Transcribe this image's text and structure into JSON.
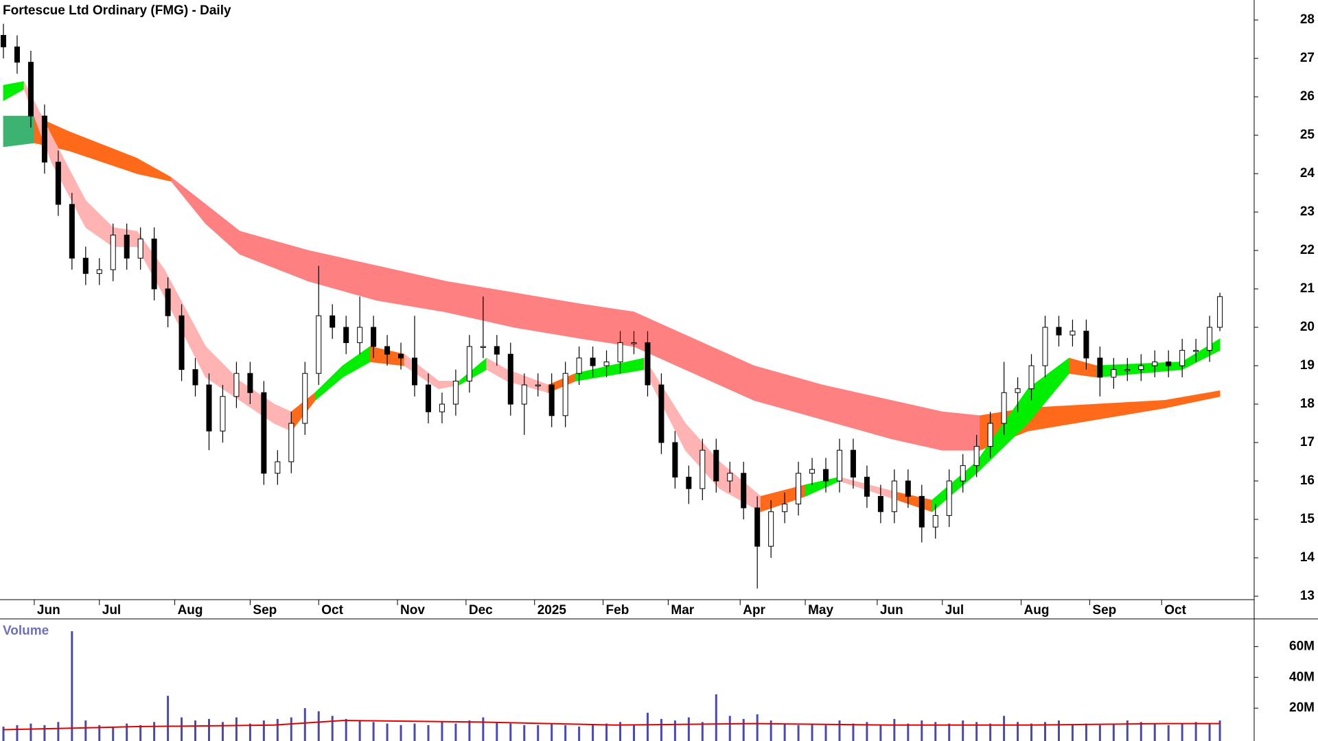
{
  "chart_data": {
    "type": "candlestick",
    "title": "Fortescue Ltd Ordinary (FMG) - Daily",
    "x": [
      1,
      5,
      9,
      13,
      17,
      21,
      25,
      29,
      33,
      37,
      41,
      45,
      49,
      53,
      57,
      61,
      65,
      69,
      73,
      77,
      81,
      85,
      89,
      93,
      97,
      101,
      105,
      109,
      113,
      117,
      121,
      125,
      129,
      133,
      137,
      141,
      145,
      149,
      153,
      157,
      161,
      165,
      169,
      173,
      177,
      181,
      185,
      189,
      193,
      197,
      201,
      205,
      209,
      213,
      217,
      221,
      225,
      229,
      233,
      237,
      241,
      245,
      249,
      253,
      257,
      261,
      265,
      269,
      273,
      277,
      281,
      285,
      289,
      293,
      297,
      301,
      305,
      309,
      313,
      317,
      321,
      325,
      329,
      333,
      337,
      341,
      345,
      349,
      353,
      356
    ],
    "open": [
      27.6,
      27.3,
      26.9,
      25.5,
      24.3,
      23.2,
      21.8,
      21.4,
      21.5,
      22.4,
      21.8,
      22.3,
      21.0,
      20.3,
      18.9,
      18.5,
      17.3,
      18.2,
      18.8,
      18.3,
      16.2,
      16.5,
      17.5,
      18.8,
      20.3,
      20.0,
      19.6,
      20.0,
      19.5,
      19.3,
      19.2,
      18.5,
      17.8,
      18.0,
      18.6,
      19.5,
      19.5,
      19.3,
      18.0,
      18.5,
      18.5,
      17.7,
      18.8,
      19.2,
      19.0,
      19.1,
      19.6,
      19.6,
      18.5,
      17.0,
      16.1,
      15.8,
      16.8,
      16.0,
      16.2,
      15.3,
      14.3,
      15.2,
      15.4,
      16.2,
      16.3,
      16.0,
      16.8,
      16.1,
      15.6,
      15.2,
      16.0,
      15.6,
      14.8,
      15.1,
      16.0,
      16.4,
      16.9,
      17.5,
      18.3,
      18.4,
      19.0,
      20.0,
      19.8,
      19.9,
      19.2,
      18.7,
      18.9,
      18.9,
      19.0,
      19.1,
      19.0,
      19.4,
      19.4,
      20.0
    ],
    "high": [
      27.9,
      27.6,
      27.2,
      25.8,
      24.6,
      23.5,
      22.1,
      21.8,
      22.7,
      22.7,
      22.6,
      22.6,
      21.3,
      20.6,
      19.2,
      18.8,
      18.5,
      19.1,
      19.1,
      18.6,
      16.8,
      17.8,
      19.1,
      21.6,
      20.6,
      20.3,
      20.8,
      20.3,
      19.8,
      19.6,
      20.3,
      18.8,
      18.3,
      18.9,
      19.8,
      20.8,
      19.8,
      19.6,
      18.8,
      18.8,
      18.8,
      19.1,
      19.5,
      19.5,
      19.4,
      19.9,
      19.9,
      19.9,
      18.8,
      17.3,
      16.4,
      17.1,
      17.1,
      16.5,
      16.5,
      15.6,
      15.5,
      15.7,
      16.5,
      16.6,
      16.6,
      17.1,
      17.1,
      16.4,
      15.9,
      16.3,
      16.3,
      15.9,
      15.4,
      16.3,
      16.7,
      17.2,
      17.8,
      19.1,
      18.7,
      19.3,
      20.3,
      20.3,
      20.2,
      20.2,
      19.5,
      19.2,
      19.2,
      19.3,
      19.4,
      19.4,
      19.7,
      19.7,
      20.3,
      20.9
    ],
    "low": [
      27.0,
      26.6,
      25.2,
      24.0,
      22.9,
      21.5,
      21.1,
      21.1,
      21.2,
      21.5,
      21.5,
      20.7,
      20.0,
      18.6,
      18.2,
      16.8,
      17.0,
      17.9,
      18.0,
      15.9,
      15.9,
      16.2,
      17.2,
      18.5,
      19.7,
      19.3,
      19.3,
      19.2,
      19.0,
      18.9,
      18.2,
      17.5,
      17.5,
      17.7,
      18.3,
      19.2,
      19.0,
      17.7,
      17.2,
      18.2,
      17.4,
      17.4,
      18.5,
      18.7,
      18.7,
      18.8,
      19.3,
      18.2,
      16.7,
      15.8,
      15.4,
      15.5,
      15.7,
      15.7,
      15.0,
      13.2,
      14.0,
      14.9,
      15.1,
      15.9,
      15.7,
      15.7,
      15.8,
      15.3,
      14.9,
      14.9,
      15.3,
      14.4,
      14.5,
      14.8,
      15.7,
      16.1,
      16.6,
      17.2,
      17.8,
      18.1,
      18.7,
      19.5,
      19.5,
      18.9,
      18.2,
      18.4,
      18.6,
      18.6,
      18.7,
      18.7,
      18.7,
      19.1,
      19.1,
      19.9
    ],
    "close": [
      27.3,
      26.9,
      25.5,
      24.3,
      23.2,
      21.8,
      21.4,
      21.5,
      22.4,
      21.8,
      22.3,
      21.0,
      20.3,
      18.9,
      18.5,
      17.3,
      18.2,
      18.8,
      18.3,
      16.2,
      16.5,
      17.5,
      18.8,
      20.3,
      20.0,
      19.6,
      20.0,
      19.5,
      19.3,
      19.2,
      18.5,
      17.8,
      18.0,
      18.6,
      19.5,
      19.5,
      19.3,
      18.0,
      18.5,
      18.5,
      17.7,
      18.8,
      19.2,
      19.0,
      19.1,
      19.6,
      19.6,
      18.5,
      17.0,
      16.1,
      15.8,
      16.8,
      16.0,
      16.2,
      15.3,
      14.3,
      15.2,
      15.4,
      16.2,
      16.3,
      16.0,
      16.8,
      16.1,
      15.6,
      15.2,
      16.0,
      15.6,
      14.8,
      15.1,
      16.0,
      16.4,
      16.9,
      17.5,
      18.3,
      18.4,
      19.0,
      20.0,
      19.8,
      19.9,
      19.2,
      18.7,
      18.9,
      18.9,
      19.0,
      19.1,
      19.0,
      19.4,
      19.4,
      20.0,
      20.8
    ],
    "xlim": [
      0,
      366
    ],
    "ylim": [
      12.91,
      28.52
    ],
    "yticks": [
      13,
      14,
      15,
      16,
      17,
      18,
      19,
      20,
      21,
      22,
      23,
      24,
      25,
      26,
      27,
      28
    ],
    "xticks": [
      {
        "value": 10,
        "label": "Jun"
      },
      {
        "value": 29,
        "label": "Jul"
      },
      {
        "value": 51,
        "label": "Aug"
      },
      {
        "value": 73,
        "label": "Sep"
      },
      {
        "value": 93,
        "label": "Oct"
      },
      {
        "value": 116,
        "label": "Nov"
      },
      {
        "value": 136,
        "label": "Dec"
      },
      {
        "value": 156,
        "label": "2025"
      },
      {
        "value": 176,
        "label": "Feb"
      },
      {
        "value": 195,
        "label": "Mar"
      },
      {
        "value": 216,
        "label": "Apr"
      },
      {
        "value": 235,
        "label": "May"
      },
      {
        "value": 256,
        "label": "Jun"
      },
      {
        "value": 275,
        "label": "Jul"
      },
      {
        "value": 298,
        "label": "Aug"
      },
      {
        "value": 318,
        "label": "Sep"
      },
      {
        "value": 339,
        "label": "Oct"
      }
    ],
    "bands": [
      {
        "x": [
          1,
          10,
          20,
          40,
          50,
          60,
          70,
          90,
          110,
          130,
          150,
          170,
          185,
          200,
          220,
          240,
          260,
          275,
          286,
          300,
          320,
          340,
          356
        ],
        "upper": [
          25.5,
          25.5,
          25.1,
          24.4,
          23.9,
          23.2,
          22.5,
          22.0,
          21.6,
          21.2,
          20.9,
          20.6,
          20.4,
          19.8,
          19.0,
          18.5,
          18.1,
          17.8,
          17.7,
          17.9,
          18.0,
          18.1,
          18.35
        ],
        "lower": [
          24.7,
          24.8,
          24.6,
          24.0,
          23.8,
          22.7,
          21.9,
          21.2,
          20.7,
          20.4,
          20.0,
          19.7,
          19.5,
          18.9,
          18.1,
          17.6,
          17.1,
          16.8,
          16.8,
          17.3,
          17.6,
          17.9,
          18.2
        ],
        "colors": [
          "#3cb371",
          "#ff6a1a",
          "#ff6a1a",
          "#ff6a1a",
          "#ff8080",
          "#ff8080",
          "#ff8080",
          "#ff8080",
          "#ff8080",
          "#ff8080",
          "#ff8080",
          "#ff8080",
          "#ff8080",
          "#ff8080",
          "#ff8080",
          "#ff8080",
          "#ff8080",
          "#ff8080",
          "#ff6a1a",
          "#ff6a1a",
          "#ff6a1a",
          "#ff6a1a"
        ]
      },
      {
        "x": [
          1,
          7,
          15,
          25,
          33,
          40,
          48,
          60,
          70,
          80,
          85,
          92,
          100,
          108,
          118,
          128,
          134,
          142,
          148,
          160,
          168,
          188,
          200,
          210,
          222,
          235,
          245,
          262,
          272,
          285,
          300,
          312,
          320,
          345,
          356
        ],
        "upper": [
          26.3,
          26.4,
          25.0,
          23.3,
          22.6,
          22.5,
          21.5,
          19.5,
          18.6,
          18.0,
          17.8,
          18.3,
          19.0,
          19.5,
          19.3,
          18.6,
          18.6,
          19.2,
          18.9,
          18.5,
          18.8,
          19.2,
          17.5,
          16.5,
          15.6,
          15.9,
          16.1,
          15.7,
          15.5,
          16.5,
          18.4,
          19.2,
          19.0,
          19.1,
          19.7
        ],
        "lower": [
          25.9,
          26.2,
          24.3,
          22.6,
          22.1,
          22.1,
          20.8,
          18.7,
          18.1,
          17.5,
          17.3,
          18.1,
          18.7,
          19.1,
          19.0,
          18.4,
          18.5,
          18.9,
          18.6,
          18.3,
          18.6,
          18.9,
          16.8,
          15.8,
          15.2,
          15.6,
          16.0,
          15.5,
          15.2,
          16.2,
          17.5,
          18.8,
          18.7,
          18.9,
          19.4
        ],
        "colors": [
          "#00ee00",
          "#ffb3b3",
          "#ffb3b3",
          "#ffb3b3",
          "#ffb3b3",
          "#ffb3b3",
          "#ffb3b3",
          "#ffb3b3",
          "#ffb3b3",
          "#ffb3b3",
          "#ff6a1a",
          "#00ee00",
          "#00ee00",
          "#ff6a1a",
          "#ffb3b3",
          "#ffb3b3",
          "#00ee00",
          "#ffb3b3",
          "#ffb3b3",
          "#ff6a1a",
          "#00ee00",
          "#ffb3b3",
          "#ffb3b3",
          "#ffb3b3",
          "#ff6a1a",
          "#00ee00",
          "#ffb3b3",
          "#ff6a1a",
          "#00ee00",
          "#00ee00",
          "#00ee00",
          "#ff6a1a",
          "#00ee00",
          "#00ee00"
        ]
      }
    ],
    "volume": {
      "label": "Volume",
      "color": "#4a4aa8",
      "values": [
        8000000,
        9000000,
        10000000,
        9000000,
        11000000,
        70000000,
        12000000,
        9000000,
        8000000,
        10000000,
        9000000,
        11000000,
        28000000,
        14000000,
        12000000,
        13000000,
        11000000,
        14000000,
        10000000,
        12000000,
        13000000,
        14000000,
        20000000,
        18000000,
        15000000,
        13000000,
        12000000,
        11000000,
        10000000,
        9000000,
        10000000,
        9000000,
        11000000,
        10000000,
        12000000,
        14000000,
        11000000,
        10000000,
        9000000,
        9000000,
        10000000,
        9000000,
        8000000,
        9000000,
        10000000,
        11000000,
        9000000,
        17000000,
        13000000,
        12000000,
        14000000,
        11000000,
        29000000,
        15000000,
        13000000,
        16000000,
        12000000,
        10000000,
        9000000,
        10000000,
        9000000,
        12000000,
        10000000,
        11000000,
        9000000,
        13000000,
        10000000,
        12000000,
        11000000,
        10000000,
        12000000,
        11000000,
        10000000,
        15000000,
        11000000,
        10000000,
        11000000,
        12000000,
        9000000,
        10000000,
        9000000,
        10000000,
        12000000,
        11000000,
        10000000,
        9000000,
        10000000,
        11000000,
        10000000,
        12000000
      ],
      "ylim": [
        0,
        78000000
      ],
      "yticks": [
        {
          "value": 20000000,
          "label": "20M"
        },
        {
          "value": 40000000,
          "label": "40M"
        },
        {
          "value": 60000000,
          "label": "60M"
        }
      ],
      "ma": {
        "x": [
          1,
          40,
          80,
          100,
          140,
          180,
          220,
          260,
          300,
          340,
          356
        ],
        "values": [
          6000000,
          8000000,
          9000000,
          12000000,
          11000000,
          9000000,
          10000000,
          9000000,
          9000000,
          10000000,
          10000000
        ],
        "color": "#e00000"
      }
    }
  }
}
